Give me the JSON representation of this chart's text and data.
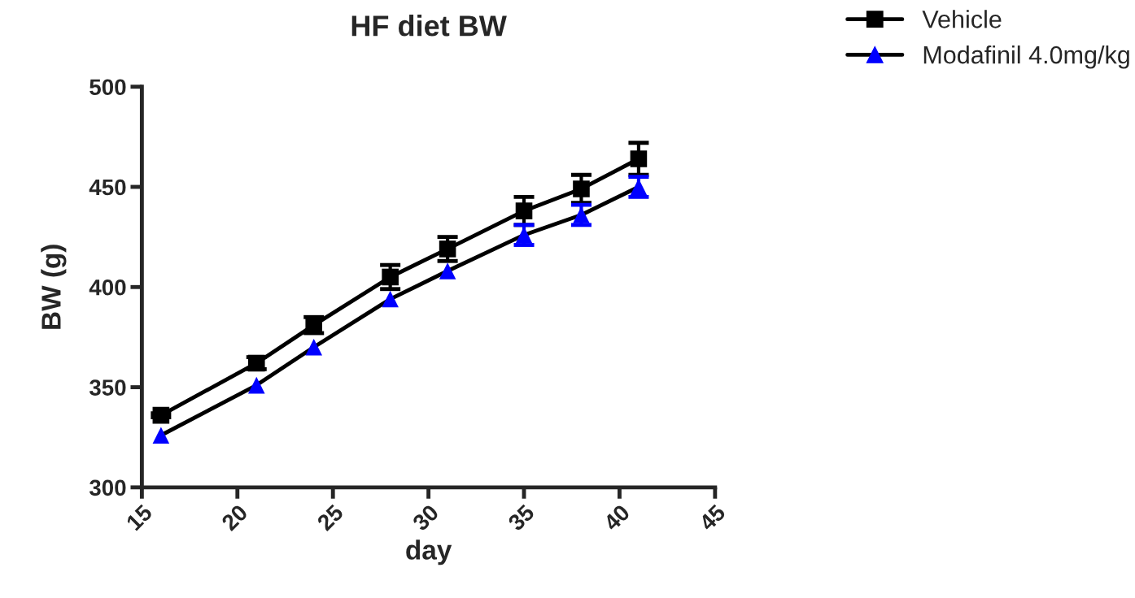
{
  "chart_data": {
    "type": "line",
    "title": "HF diet BW",
    "xlabel": "day",
    "ylabel": "BW (g)",
    "xlim": [
      15,
      45
    ],
    "xticks": [
      15,
      20,
      25,
      30,
      35,
      40,
      45
    ],
    "ylim": [
      300,
      500
    ],
    "yticks": [
      300,
      350,
      400,
      450,
      500
    ],
    "grid": false,
    "legend": "top right",
    "series": [
      {
        "name": "Vehicle",
        "color": "#000000",
        "marker": "square",
        "x": [
          16,
          21,
          24,
          28,
          31,
          35,
          38,
          41
        ],
        "values": [
          336,
          362,
          381,
          405,
          419,
          438,
          449,
          464
        ],
        "errors": [
          1,
          3,
          4,
          6,
          6,
          7,
          7,
          8
        ]
      },
      {
        "name": "Modafinil 4.0mg/kg",
        "color": "#0000ff",
        "marker": "triangle",
        "x": [
          16,
          21,
          24,
          28,
          31,
          35,
          38,
          41
        ],
        "values": [
          326,
          351,
          370,
          394,
          408,
          426,
          436,
          450
        ],
        "errors": [
          null,
          null,
          null,
          null,
          null,
          5,
          5,
          5
        ]
      }
    ]
  }
}
